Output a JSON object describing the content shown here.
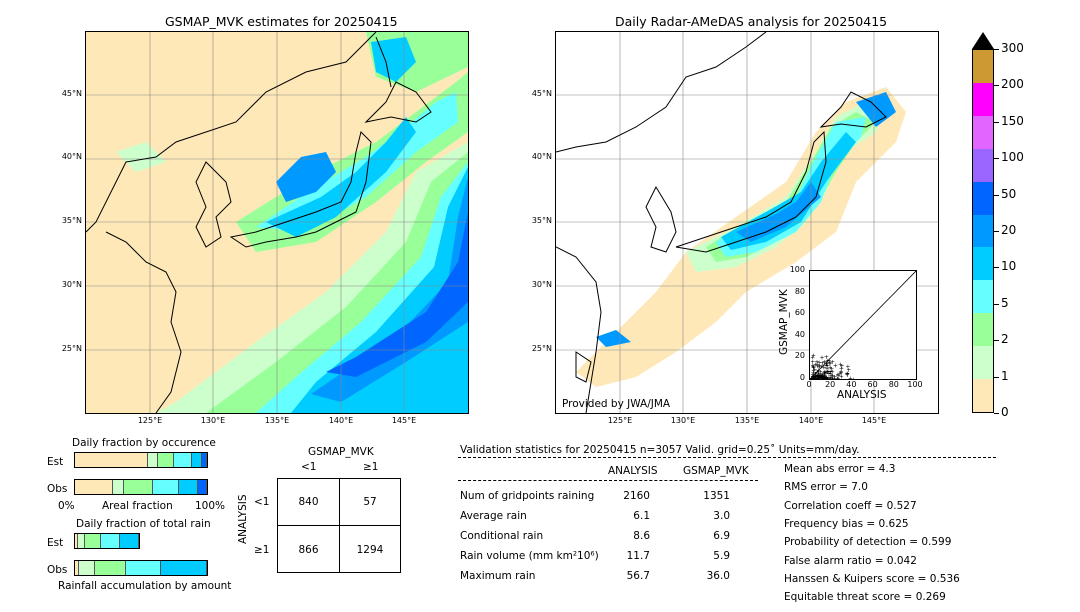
{
  "left_map": {
    "title": "GSMAP_MVK estimates for 20250415"
  },
  "right_map": {
    "title": "Daily Radar-AMeDAS analysis for 20250415",
    "credit": "Provided by JWA/JMA"
  },
  "lat_labels": [
    "45°N",
    "40°N",
    "35°N",
    "30°N",
    "25°N"
  ],
  "lon_labels": [
    "125°E",
    "130°E",
    "135°E",
    "140°E",
    "145°E"
  ],
  "colorbar": {
    "ticks": [
      "300",
      "200",
      "150",
      "100",
      "50",
      "20",
      "10",
      "5",
      "2",
      "1",
      "0"
    ],
    "colors": [
      "#cc9933",
      "#ff00ff",
      "#e066ff",
      "#9966ff",
      "#0066ff",
      "#0099ff",
      "#00ccff",
      "#66ffff",
      "#99ff99",
      "#ccffcc",
      "#ffe8b8"
    ]
  },
  "scatter": {
    "ylabel": "GSMAP_MVK",
    "xlabel": "ANALYSIS",
    "ticks": [
      "0",
      "20",
      "40",
      "60",
      "80",
      "100"
    ]
  },
  "occurrence": {
    "title": "Daily fraction by occurence",
    "est_label": "Est",
    "obs_label": "Obs",
    "axis_left": "0%",
    "axis_mid": "Areal fraction",
    "axis_right": "100%"
  },
  "total_rain": {
    "title": "Daily fraction of total rain",
    "est_label": "Est",
    "obs_label": "Obs",
    "axis_label": "Rainfall accumulation by amount"
  },
  "contingency": {
    "col_header": "GSMAP_MVK",
    "col_lt": "<1",
    "col_ge": "≥1",
    "row_header": "ANALYSIS",
    "row_lt": "<1",
    "row_ge": "≥1",
    "c11": "840",
    "c12": "57",
    "c21": "866",
    "c22": "1294"
  },
  "validation": {
    "header": "Validation statistics for 20250415  n=3057 Valid. grid=0.25˚ Units=mm/day.",
    "col1": "ANALYSIS",
    "col2": "GSMAP_MVK",
    "rows": [
      {
        "label": "Num of gridpoints raining",
        "a": "2160",
        "g": "1351"
      },
      {
        "label": "Average rain",
        "a": "6.1",
        "g": "3.0"
      },
      {
        "label": "Conditional rain",
        "a": "8.6",
        "g": "6.9"
      },
      {
        "label": "Rain volume (mm km²10⁶)",
        "a": "11.7",
        "g": "5.9"
      },
      {
        "label": "Maximum rain",
        "a": "56.7",
        "g": "36.0"
      }
    ],
    "scores": [
      "Mean abs error =    4.3",
      "RMS error =    7.0",
      "Correlation coeff =  0.527",
      "Frequency bias =  0.625",
      "Probability of detection =  0.599",
      "False alarm ratio =  0.042",
      "Hanssen & Kuipers score =  0.536",
      "Equitable threat score =  0.269"
    ]
  },
  "chart_data": {
    "type": "table",
    "contingency_table": {
      "rows": [
        "<1",
        "≥1"
      ],
      "cols": [
        "<1",
        "≥1"
      ],
      "values": [
        [
          840,
          57
        ],
        [
          866,
          1294
        ]
      ]
    },
    "statistics": {
      "n": 3057,
      "num_gridpoints_raining": {
        "ANALYSIS": 2160,
        "GSMAP_MVK": 1351
      },
      "average_rain": {
        "ANALYSIS": 6.1,
        "GSMAP_MVK": 3.0
      },
      "conditional_rain": {
        "ANALYSIS": 8.6,
        "GSMAP_MVK": 6.9
      },
      "rain_volume": {
        "ANALYSIS": 11.7,
        "GSMAP_MVK": 5.9
      },
      "maximum_rain": {
        "ANALYSIS": 56.7,
        "GSMAP_MVK": 36.0
      },
      "mean_abs_error": 4.3,
      "rms_error": 7.0,
      "correlation_coeff": 0.527,
      "frequency_bias": 0.625,
      "probability_of_detection": 0.599,
      "false_alarm_ratio": 0.042,
      "hanssen_kuipers_score": 0.536,
      "equitable_threat_score": 0.269
    },
    "occurrence_fractions": {
      "Est": [
        0.55,
        0.08,
        0.12,
        0.14,
        0.07,
        0.04
      ],
      "Obs": [
        0.29,
        0.08,
        0.22,
        0.2,
        0.14,
        0.07
      ]
    },
    "total_rain_fractions": {
      "Est": [
        0.05,
        0.1,
        0.25,
        0.3,
        0.3
      ],
      "Obs": [
        0.03,
        0.12,
        0.24,
        0.26,
        0.35
      ]
    },
    "scatter_axes": {
      "xlim": [
        0,
        100
      ],
      "ylim": [
        0,
        100
      ]
    }
  }
}
